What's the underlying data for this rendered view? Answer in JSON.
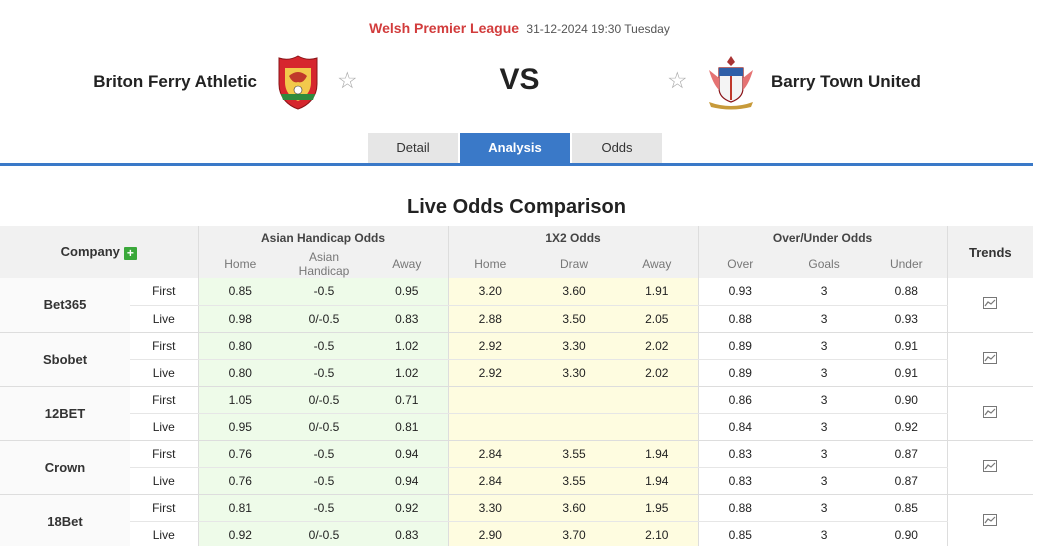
{
  "match": {
    "league": "Welsh Premier League",
    "datetime": "31-12-2024 19:30 Tuesday",
    "home_team": "Briton Ferry Athletic",
    "away_team": "Barry Town United",
    "vs": "VS"
  },
  "tabs": [
    {
      "label": "Detail",
      "active": false
    },
    {
      "label": "Analysis",
      "active": true
    },
    {
      "label": "Odds",
      "active": false
    }
  ],
  "section_title": "Live Odds Comparison",
  "table": {
    "company_header": "Company",
    "trends_header": "Trends",
    "groups": [
      "Asian Handicap Odds",
      "1X2 Odds",
      "Over/Under Odds"
    ],
    "sub_headers": [
      "Home",
      "Asian Handicap",
      "Away",
      "Home",
      "Draw",
      "Away",
      "Over",
      "Goals",
      "Under"
    ],
    "rows": [
      {
        "company": "Bet365",
        "first": {
          "label": "First",
          "ah": [
            "0.85",
            "-0.5",
            "0.95"
          ],
          "x12": [
            "3.20",
            "3.60",
            "1.91"
          ],
          "ou": [
            "0.93",
            "3",
            "0.88"
          ]
        },
        "live": {
          "label": "Live",
          "ah": [
            "0.98",
            "0/-0.5",
            "0.83"
          ],
          "x12": [
            "2.88",
            "3.50",
            "2.05"
          ],
          "ou": [
            "0.88",
            "3",
            "0.93"
          ]
        }
      },
      {
        "company": "Sbobet",
        "first": {
          "label": "First",
          "ah": [
            "0.80",
            "-0.5",
            "1.02"
          ],
          "x12": [
            "2.92",
            "3.30",
            "2.02"
          ],
          "ou": [
            "0.89",
            "3",
            "0.91"
          ]
        },
        "live": {
          "label": "Live",
          "ah": [
            "0.80",
            "-0.5",
            "1.02"
          ],
          "x12": [
            "2.92",
            "3.30",
            "2.02"
          ],
          "ou": [
            "0.89",
            "3",
            "0.91"
          ]
        }
      },
      {
        "company": "12BET",
        "first": {
          "label": "First",
          "ah": [
            "1.05",
            "0/-0.5",
            "0.71"
          ],
          "x12": [
            "",
            "",
            ""
          ],
          "ou": [
            "0.86",
            "3",
            "0.90"
          ]
        },
        "live": {
          "label": "Live",
          "ah": [
            "0.95",
            "0/-0.5",
            "0.81"
          ],
          "x12": [
            "",
            "",
            ""
          ],
          "ou": [
            "0.84",
            "3",
            "0.92"
          ]
        }
      },
      {
        "company": "Crown",
        "first": {
          "label": "First",
          "ah": [
            "0.76",
            "-0.5",
            "0.94"
          ],
          "x12": [
            "2.84",
            "3.55",
            "1.94"
          ],
          "ou": [
            "0.83",
            "3",
            "0.87"
          ]
        },
        "live": {
          "label": "Live",
          "ah": [
            "0.76",
            "-0.5",
            "0.94"
          ],
          "x12": [
            "2.84",
            "3.55",
            "1.94"
          ],
          "ou": [
            "0.83",
            "3",
            "0.87"
          ]
        }
      },
      {
        "company": "18Bet",
        "first": {
          "label": "First",
          "ah": [
            "0.81",
            "-0.5",
            "0.92"
          ],
          "x12": [
            "3.30",
            "3.60",
            "1.95"
          ],
          "ou": [
            "0.88",
            "3",
            "0.85"
          ]
        },
        "live": {
          "label": "Live",
          "ah": [
            "0.92",
            "0/-0.5",
            "0.83"
          ],
          "x12": [
            "2.90",
            "3.70",
            "2.10"
          ],
          "ou": [
            "0.85",
            "3",
            "0.90"
          ]
        }
      }
    ]
  },
  "colors": {
    "accent": "#3a79c8",
    "league_red": "#d23c3c",
    "ah_bg": "#eefbe9",
    "x12_bg": "#fefce0",
    "plus_green": "#3aa83a"
  },
  "icons": {
    "home_crest": "home-team-crest-icon",
    "away_crest": "away-team-crest-icon",
    "favorite": "star-outline-icon",
    "add": "plus-icon",
    "trend": "line-chart-icon"
  }
}
